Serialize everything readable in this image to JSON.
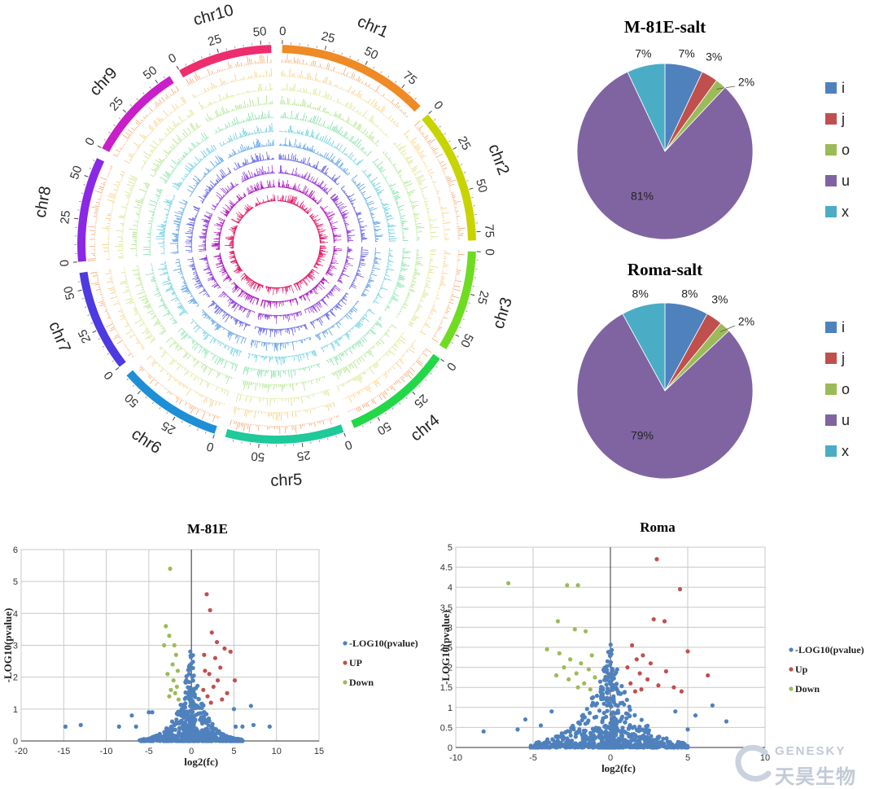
{
  "circos": {
    "chromosomes": [
      {
        "name": "chr1",
        "length": 90,
        "color": "#f08a24",
        "ticks": [
          "0",
          "25",
          "50",
          "75"
        ]
      },
      {
        "name": "chr2",
        "length": 80,
        "color": "#c8d400",
        "ticks": [
          "0",
          "25",
          "50",
          "75"
        ]
      },
      {
        "name": "chr3",
        "length": 60,
        "color": "#6fdc22",
        "ticks": [
          "0",
          "25",
          "50"
        ]
      },
      {
        "name": "chr4",
        "length": 65,
        "color": "#22d848",
        "ticks": [
          "0",
          "25",
          "50"
        ]
      },
      {
        "name": "chr5",
        "length": 70,
        "color": "#1ec99a",
        "ticks": [
          "0",
          "25",
          "50"
        ]
      },
      {
        "name": "chr6",
        "length": 62,
        "color": "#1e8fd6",
        "ticks": [
          "0",
          "25",
          "50"
        ]
      },
      {
        "name": "chr7",
        "length": 60,
        "color": "#4d3ae0",
        "ticks": [
          "0",
          "25",
          "50"
        ]
      },
      {
        "name": "chr8",
        "length": 62,
        "color": "#8a28e6",
        "ticks": [
          "0",
          "25",
          "50"
        ]
      },
      {
        "name": "chr9",
        "length": 58,
        "color": "#c81fc8",
        "ticks": [
          "0",
          "25",
          "50"
        ]
      },
      {
        "name": "chr10",
        "length": 56,
        "color": "#ee2d6e",
        "ticks": [
          "0",
          "25",
          "50"
        ]
      }
    ],
    "track_colors": [
      "#f59a5a",
      "#f5c76a",
      "#cfe070",
      "#9fe070",
      "#6fdc9a",
      "#4fc6d8",
      "#3d8fe0",
      "#4a4ae0",
      "#8a2fd8",
      "#b01fc0",
      "#e01f6a"
    ]
  },
  "pies": [
    {
      "title": "M-81E-salt",
      "chart_data": {
        "type": "pie",
        "title": "M-81E-salt",
        "labels": [
          "i",
          "j",
          "o",
          "u",
          "x"
        ],
        "values": [
          7,
          3,
          2,
          81,
          7
        ],
        "colors": [
          "#4f81bd",
          "#c0504d",
          "#9bbb59",
          "#8064a2",
          "#4bacc6"
        ]
      },
      "labels": [
        "7%",
        "3%",
        "2%",
        "81%",
        "7%"
      ]
    },
    {
      "title": "Roma-salt",
      "chart_data": {
        "type": "pie",
        "title": "Roma-salt",
        "labels": [
          "i",
          "j",
          "o",
          "u",
          "x"
        ],
        "values": [
          8,
          3,
          2,
          79,
          8
        ],
        "colors": [
          "#4f81bd",
          "#c0504d",
          "#9bbb59",
          "#8064a2",
          "#4bacc6"
        ]
      },
      "labels": [
        "8%",
        "3%",
        "2%",
        "79%",
        "8%"
      ]
    }
  ],
  "volcanoes": [
    {
      "title": "M-81E",
      "chart_data": {
        "type": "scatter",
        "title": "M-81E",
        "xlabel": "log2(fc)",
        "ylabel": "-LOG10(pvalue)",
        "xlim": [
          -20,
          15
        ],
        "ylim": [
          0,
          6
        ],
        "series": [
          {
            "name": "-LOG10(pvalue)",
            "color": "#4f81bd"
          },
          {
            "name": "UP",
            "color": "#c0504d"
          },
          {
            "name": "Down",
            "color": "#9bbb59"
          }
        ],
        "highlight_points": {
          "down": [
            [
              -2.5,
              5.4
            ],
            [
              -3,
              3.6
            ],
            [
              -2.6,
              3.3
            ],
            [
              -2,
              3
            ],
            [
              -3.2,
              3
            ],
            [
              -1.8,
              2.7
            ],
            [
              -2.2,
              2.4
            ],
            [
              -1.6,
              2.2
            ],
            [
              -2.8,
              2.1
            ],
            [
              -2.1,
              1.9
            ],
            [
              -1.7,
              1.7
            ],
            [
              -2.4,
              1.6
            ],
            [
              -1.9,
              1.5
            ],
            [
              -2.6,
              1.4
            ],
            [
              -1.5,
              1.3
            ]
          ],
          "up": [
            [
              1.8,
              4.6
            ],
            [
              2.2,
              4.1
            ],
            [
              2.4,
              3.4
            ],
            [
              3,
              3.1
            ],
            [
              3.9,
              2.9
            ],
            [
              4.6,
              2.8
            ],
            [
              1.5,
              2.7
            ],
            [
              2.8,
              2.6
            ],
            [
              3.4,
              2.3
            ],
            [
              1.6,
              2.2
            ],
            [
              2.1,
              2.1
            ],
            [
              3.1,
              1.9
            ],
            [
              5.1,
              1.9
            ],
            [
              2.6,
              1.7
            ],
            [
              1.4,
              1.6
            ],
            [
              4.2,
              1.5
            ],
            [
              1.9,
              1.4
            ],
            [
              3.6,
              1.3
            ],
            [
              2.3,
              1.2
            ]
          ],
          "outliers": [
            [
              -14.8,
              0.45
            ],
            [
              -13,
              0.5
            ],
            [
              -8.5,
              0.45
            ],
            [
              -7,
              0.8
            ],
            [
              -6.5,
              0.45
            ],
            [
              -5,
              0.9
            ],
            [
              -4.6,
              0.9
            ],
            [
              7,
              1.1
            ],
            [
              5,
              1
            ],
            [
              7.3,
              0.5
            ],
            [
              9.2,
              0.45
            ],
            [
              6,
              0.45
            ],
            [
              5.2,
              0.45
            ]
          ]
        }
      },
      "x_ticks": [
        "-20",
        "-15",
        "-10",
        "-5",
        "0",
        "5",
        "10",
        "15"
      ],
      "y_ticks": [
        "0",
        "1",
        "2",
        "3",
        "4",
        "5",
        "6"
      ],
      "xlabel": "log2(fc)",
      "ylabel": "-LOG10(pvalue)",
      "legend": [
        "-LOG10(pvalue)",
        "UP",
        "Down"
      ]
    },
    {
      "title": "Roma",
      "chart_data": {
        "type": "scatter",
        "title": "Roma",
        "xlabel": "log2(fc)",
        "ylabel": "-LOG10(pvalue)",
        "xlim": [
          -10,
          10
        ],
        "ylim": [
          0,
          5
        ],
        "series": [
          {
            "name": "-LOG10(pvalue)",
            "color": "#4f81bd"
          },
          {
            "name": "Up",
            "color": "#c0504d"
          },
          {
            "name": "Down",
            "color": "#9bbb59"
          }
        ],
        "highlight_points": {
          "down": [
            [
              -6.6,
              4.1
            ],
            [
              -2.8,
              4.05
            ],
            [
              -2.1,
              4.05
            ],
            [
              -3.4,
              3.15
            ],
            [
              -2.3,
              2.95
            ],
            [
              -1.6,
              2.9
            ],
            [
              -4.1,
              2.45
            ],
            [
              -3.3,
              2.35
            ],
            [
              -1.2,
              2.3
            ],
            [
              -2.6,
              2.2
            ],
            [
              -1.9,
              2.1
            ],
            [
              -3,
              2
            ],
            [
              -1.4,
              1.95
            ],
            [
              -2.2,
              1.85
            ],
            [
              -3.5,
              1.8
            ],
            [
              -1,
              1.75
            ],
            [
              -2.7,
              1.7
            ],
            [
              -1.7,
              1.6
            ],
            [
              -2.1,
              1.5
            ],
            [
              -1.3,
              1.45
            ]
          ],
          "up": [
            [
              3,
              4.7
            ],
            [
              4.5,
              3.95
            ],
            [
              2.8,
              3.2
            ],
            [
              3.5,
              3.15
            ],
            [
              5,
              2.4
            ],
            [
              1.4,
              2.55
            ],
            [
              2.1,
              2.3
            ],
            [
              1.7,
              2.2
            ],
            [
              2.6,
              2.1
            ],
            [
              1.1,
              2
            ],
            [
              3.6,
              1.9
            ],
            [
              1.9,
              1.85
            ],
            [
              6.3,
              1.8
            ],
            [
              2.4,
              1.7
            ],
            [
              1.3,
              1.6
            ],
            [
              3.1,
              1.55
            ],
            [
              4.1,
              1.5
            ],
            [
              2,
              1.45
            ],
            [
              1.6,
              1.4
            ],
            [
              4.6,
              1.4
            ]
          ],
          "outliers": [
            [
              -8.2,
              0.4
            ],
            [
              -6,
              0.45
            ],
            [
              -5.5,
              0.7
            ],
            [
              -4.5,
              0.55
            ],
            [
              6.6,
              1.05
            ],
            [
              5.5,
              0.8
            ],
            [
              7.5,
              0.65
            ],
            [
              5,
              0.45
            ],
            [
              4.2,
              0.9
            ],
            [
              -3.8,
              0.9
            ]
          ]
        }
      },
      "x_ticks": [
        "-10",
        "-5",
        "0",
        "5",
        "10"
      ],
      "y_ticks": [
        "0",
        "0.5",
        "1",
        "1.5",
        "2",
        "2.5",
        "3",
        "3.5",
        "4",
        "4.5",
        "5"
      ],
      "xlabel": "log2(fc)",
      "ylabel": "-LOG10(pvalue)",
      "legend": [
        "-LOG10(pvalue)",
        "Up",
        "Down"
      ]
    }
  ],
  "watermark": {
    "brand": "GENESKY",
    "chinese": "天昊生物"
  }
}
